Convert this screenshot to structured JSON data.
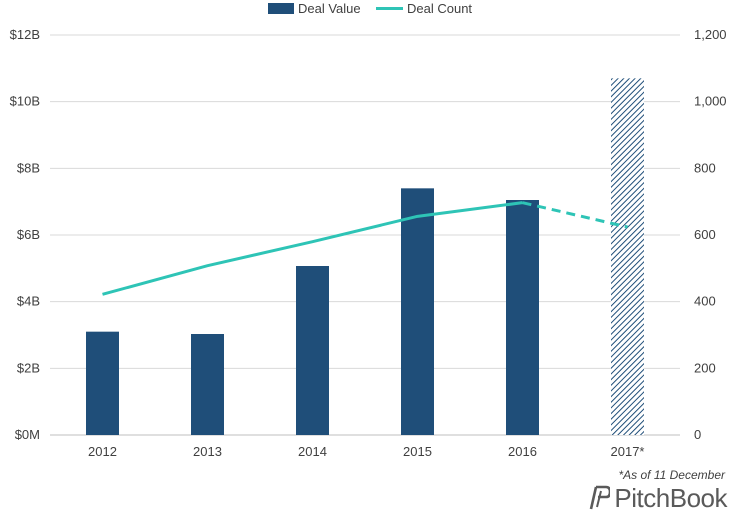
{
  "chart_data": {
    "type": "bar",
    "categories": [
      "2012",
      "2013",
      "2014",
      "2015",
      "2016",
      "2017*"
    ],
    "series": [
      {
        "name": "Deal Value",
        "type": "bar",
        "axis": "left",
        "color": "#1f4e79",
        "values": [
          3.1,
          3.03,
          5.07,
          7.4,
          7.05,
          10.7
        ],
        "hatched_categories": [
          "2017*"
        ]
      },
      {
        "name": "Deal Count",
        "type": "line",
        "axis": "right",
        "color": "#2ec4b6",
        "values": [
          422,
          508,
          580,
          656,
          697,
          624
        ],
        "dashed_from_category": "2016"
      }
    ],
    "y_left": {
      "ticks": [
        "$0M",
        "$2B",
        "$4B",
        "$6B",
        "$8B",
        "$10B",
        "$12B"
      ],
      "min": 0,
      "max": 12
    },
    "y_right": {
      "ticks": [
        "0",
        "200",
        "400",
        "600",
        "800",
        "1,000",
        "1,200"
      ],
      "min": 0,
      "max": 1200
    },
    "legend_position": "top-center",
    "grid": true
  },
  "footnote": "*As of 11 December",
  "brand": "PitchBook"
}
